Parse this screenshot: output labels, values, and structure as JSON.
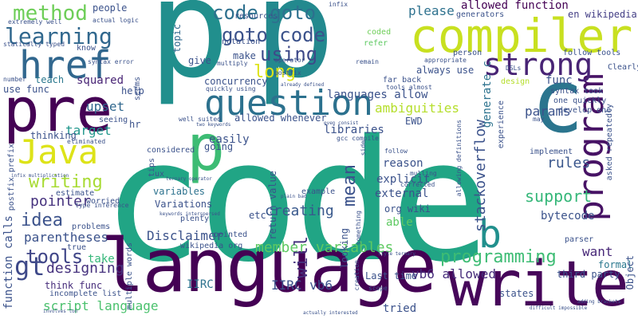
{
  "words": [
    {
      "text": "code",
      "color": "#21a585"
    },
    {
      "text": "language",
      "color": "#440154"
    },
    {
      "text": "p",
      "color": "#218f8d"
    },
    {
      "text": "p",
      "color": "#23898e"
    },
    {
      "text": "write",
      "color": "#46075a"
    },
    {
      "text": "compiler",
      "color": "#c8e020"
    },
    {
      "text": "pre",
      "color": "#440154"
    },
    {
      "text": "question",
      "color": "#2c718e"
    },
    {
      "text": "program",
      "color": "#471365"
    },
    {
      "text": "href",
      "color": "#31678e"
    },
    {
      "text": "strong",
      "color": "#482475"
    },
    {
      "text": "Java",
      "color": "#dde318"
    },
    {
      "text": "c",
      "color": "#2b758e"
    },
    {
      "text": "p",
      "color": "#3dbc74"
    },
    {
      "text": "code goto",
      "color": "#2d708e"
    },
    {
      "text": "goto code",
      "color": "#3b528b"
    },
    {
      "text": "learning",
      "color": "#31688e"
    },
    {
      "text": "method",
      "color": "#6ece58"
    },
    {
      "text": "using",
      "color": "#3e4989"
    },
    {
      "text": "long",
      "color": "#dde318"
    },
    {
      "text": "allowed function",
      "color": "#440154"
    },
    {
      "text": "please",
      "color": "#2d718e"
    },
    {
      "text": "en wikipedia",
      "color": "#433e85"
    },
    {
      "text": "writing",
      "color": "#a8db34"
    },
    {
      "text": "idea",
      "color": "#3b528b"
    },
    {
      "text": "pointer",
      "color": "#46327e"
    },
    {
      "text": "tools",
      "color": "#404688"
    },
    {
      "text": "parentheses",
      "color": "#3b528b"
    },
    {
      "text": "target",
      "color": "#1f968b"
    },
    {
      "text": "designing",
      "color": "#46327e"
    },
    {
      "text": "gt",
      "color": "#3e4989"
    },
    {
      "text": "think func",
      "color": "#472d7b"
    },
    {
      "text": "script language",
      "color": "#4ac16d"
    },
    {
      "text": "function calls",
      "color": "#3b528b"
    },
    {
      "text": "squared",
      "color": "#482475"
    },
    {
      "text": "upset",
      "color": "#31688e"
    },
    {
      "text": "creating",
      "color": "#38588c"
    },
    {
      "text": "variables",
      "color": "#2c728e"
    },
    {
      "text": "Variations",
      "color": "#3b528b"
    },
    {
      "text": "Disclaimer",
      "color": "#3b528b"
    },
    {
      "text": "member variables",
      "color": "#5ec962"
    },
    {
      "text": "IIRC",
      "color": "#2c728e"
    },
    {
      "text": "IIRC vb6",
      "color": "#3b528b"
    },
    {
      "text": "vb6 allowed",
      "color": "#472d7b"
    },
    {
      "text": "programming",
      "color": "#3dbc74"
    },
    {
      "text": "want",
      "color": "#482878"
    },
    {
      "text": "formal",
      "color": "#2a788e"
    },
    {
      "text": "states",
      "color": "#3b528b"
    },
    {
      "text": "tried",
      "color": "#3b528b"
    },
    {
      "text": "b",
      "color": "#21908d"
    },
    {
      "text": "support",
      "color": "#35b779"
    },
    {
      "text": "rules",
      "color": "#39568c"
    },
    {
      "text": "bytecode",
      "color": "#3b528b"
    },
    {
      "text": "stackoverflow",
      "color": "#3b528b"
    },
    {
      "text": "params",
      "color": "#3b528b"
    },
    {
      "text": "func",
      "color": "#3b528b"
    },
    {
      "text": "generate c",
      "color": "#2c728e"
    },
    {
      "text": "mean",
      "color": "#3b528b"
    },
    {
      "text": "will",
      "color": "#46327e"
    },
    {
      "text": "ambiguities",
      "color": "#b5de2b"
    },
    {
      "text": "languages allow",
      "color": "#3b528b"
    },
    {
      "text": "allowed whenever",
      "color": "#3b528b"
    },
    {
      "text": "always use",
      "color": "#3b528b"
    },
    {
      "text": "concurrency",
      "color": "#3b528b"
    },
    {
      "text": "easily",
      "color": "#3b528b"
    },
    {
      "text": "going",
      "color": "#3b528b"
    },
    {
      "text": "thinking",
      "color": "#3b528b"
    },
    {
      "text": "estimate",
      "color": "#3b528b"
    },
    {
      "text": "worried",
      "color": "#3b528b"
    },
    {
      "text": "teach",
      "color": "#2a788e"
    },
    {
      "text": "use func",
      "color": "#3b528b"
    },
    {
      "text": "help",
      "color": "#3b528b"
    },
    {
      "text": "topic",
      "color": "#31688e"
    },
    {
      "text": "give",
      "color": "#3b528b"
    },
    {
      "text": "make",
      "color": "#3b528b"
    },
    {
      "text": "know",
      "color": "#3b528b"
    },
    {
      "text": "people",
      "color": "#3b528b"
    },
    {
      "text": "resources",
      "color": "#3b528b"
    },
    {
      "text": "notation",
      "color": "#3b528b"
    },
    {
      "text": "refer",
      "color": "#5ec962"
    },
    {
      "text": "coded",
      "color": "#6ece58"
    },
    {
      "text": "person",
      "color": "#3b528b"
    },
    {
      "text": "generators",
      "color": "#3b528b"
    },
    {
      "text": "follow tools",
      "color": "#3b528b"
    },
    {
      "text": "Clearly",
      "color": "#3b528b"
    },
    {
      "text": "syntax took",
      "color": "#3b528b"
    },
    {
      "text": "one quickly",
      "color": "#3b528b"
    },
    {
      "text": "develop one",
      "color": "#3b528b"
    },
    {
      "text": "design",
      "color": "#b5de2b"
    },
    {
      "text": "experience",
      "color": "#3b528b"
    },
    {
      "text": "EWD",
      "color": "#3b528b"
    },
    {
      "text": "far back",
      "color": "#3b528b"
    },
    {
      "text": "return value",
      "color": "#3b528b"
    },
    {
      "text": "external",
      "color": "#3b528b"
    },
    {
      "text": "org wiki",
      "color": "#3b528b"
    },
    {
      "text": "explicit",
      "color": "#3b528b"
    },
    {
      "text": "reason",
      "color": "#3b528b"
    },
    {
      "text": "able",
      "color": "#5ec962"
    },
    {
      "text": "Last time",
      "color": "#3b528b"
    },
    {
      "text": "looking",
      "color": "#3b528b"
    },
    {
      "text": "libraries",
      "color": "#3b528b"
    },
    {
      "text": "third party",
      "color": "#3b528b"
    },
    {
      "text": "Object",
      "color": "#3b528b"
    },
    {
      "text": "take",
      "color": "#35b779"
    },
    {
      "text": "plenty",
      "color": "#3b528b"
    },
    {
      "text": "pointed",
      "color": "#3b528b"
    },
    {
      "text": "wikipedia org",
      "color": "#3b528b"
    },
    {
      "text": "etc",
      "color": "#3b528b"
    },
    {
      "text": "example",
      "color": "#3b528b"
    },
    {
      "text": "implement",
      "color": "#3b528b"
    },
    {
      "text": "parser",
      "color": "#3b528b"
    },
    {
      "text": "postfix prefix",
      "color": "#3b528b"
    },
    {
      "text": "problems",
      "color": "#3b528b"
    },
    {
      "text": "true",
      "color": "#3b528b"
    },
    {
      "text": "multiple words",
      "color": "#3b528b"
    },
    {
      "text": "incomplete list",
      "color": "#3b528b"
    },
    {
      "text": "considered",
      "color": "#3b528b"
    },
    {
      "text": "tips",
      "color": "#3b528b"
    },
    {
      "text": "hr",
      "color": "#3b528b"
    },
    {
      "text": "seeing",
      "color": "#3b528b"
    },
    {
      "text": "eliminated",
      "color": "#3b528b"
    },
    {
      "text": "statically typed",
      "color": "#3b528b"
    },
    {
      "text": "extremely well",
      "color": "#3b528b"
    },
    {
      "text": "actual logic",
      "color": "#3b528b"
    },
    {
      "text": "syntax error",
      "color": "#3b528b"
    },
    {
      "text": "number",
      "color": "#3b528b"
    },
    {
      "text": "multiply",
      "color": "#3b528b"
    },
    {
      "text": "quickly using",
      "color": "#3b528b"
    },
    {
      "text": "postfix",
      "color": "#3b528b"
    },
    {
      "text": "operator",
      "color": "#3b528b"
    },
    {
      "text": "infix",
      "color": "#3b528b"
    },
    {
      "text": "remain",
      "color": "#3b528b"
    },
    {
      "text": "appropriate",
      "color": "#3b528b"
    },
    {
      "text": "tools almost",
      "color": "#3b528b"
    },
    {
      "text": "DSLs",
      "color": "#3b528b"
    },
    {
      "text": "allowing definitions",
      "color": "#3b528b"
    },
    {
      "text": "asked repeatedly",
      "color": "#3b528b"
    },
    {
      "text": "corrected",
      "color": "#3b528b"
    },
    {
      "text": "mulling",
      "color": "#3b528b"
    },
    {
      "text": "scope",
      "color": "#3b528b"
    },
    {
      "text": "creation",
      "color": "#3b528b"
    },
    {
      "text": "side",
      "color": "#3b528b"
    },
    {
      "text": "gcc compile",
      "color": "#3b528b"
    },
    {
      "text": "well suited",
      "color": "#3b528b"
    },
    {
      "text": "two keywords",
      "color": "#3b528b"
    },
    {
      "text": "ternary operator",
      "color": "#3b528b"
    },
    {
      "text": "type inference",
      "color": "#3b528b"
    },
    {
      "text": "infix multiplication",
      "color": "#3b528b"
    },
    {
      "text": "keywords interspersed",
      "color": "#3b528b"
    },
    {
      "text": "adding brackets",
      "color": "#3b528b"
    },
    {
      "text": "difficult impossible",
      "color": "#3b528b"
    },
    {
      "text": "actually interested",
      "color": "#3b528b"
    },
    {
      "text": "style ternary",
      "color": "#3b528b"
    },
    {
      "text": "involves ton",
      "color": "#3b528b"
    },
    {
      "text": "plain bad",
      "color": "#3b528b"
    },
    {
      "text": "seems",
      "color": "#3b528b"
    },
    {
      "text": "something",
      "color": "#3b528b"
    },
    {
      "text": "may",
      "color": "#3b528b"
    },
    {
      "text": "already defined",
      "color": "#3b528b"
    },
    {
      "text": "even consist",
      "color": "#3b528b"
    },
    {
      "text": "ux",
      "color": "#3b528b"
    },
    {
      "text": "follow",
      "color": "#3b528b"
    }
  ]
}
